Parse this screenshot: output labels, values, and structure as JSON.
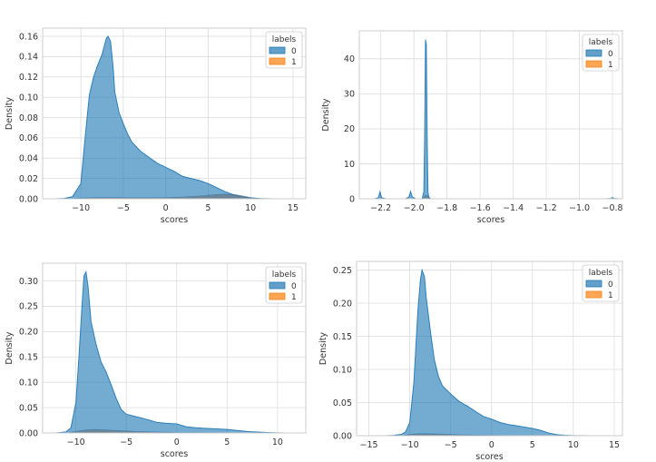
{
  "colors": {
    "label_0": "#1f77b4",
    "label_1": "#ff7f0e",
    "grid": "#dcdcdc",
    "axes": "#cccccc",
    "overlap": "#666666"
  },
  "chart_data": [
    {
      "type": "area",
      "subtype": "kde",
      "xlabel": "scores",
      "ylabel": "Density",
      "xlim": [
        -14.5,
        16.5
      ],
      "ylim": [
        0,
        0.168
      ],
      "xticks": [
        -10,
        -5,
        0,
        5,
        10,
        15
      ],
      "xtick_labels": [
        "−10",
        "−5",
        "0",
        "5",
        "10",
        "15"
      ],
      "yticks": [
        0,
        0.02,
        0.04,
        0.06,
        0.08,
        0.1,
        0.12,
        0.14,
        0.16
      ],
      "ytick_labels": [
        "0.00",
        "0.02",
        "0.04",
        "0.06",
        "0.08",
        "0.10",
        "0.12",
        "0.14",
        "0.16"
      ],
      "grid": true,
      "legend": {
        "title": "labels",
        "placement": "top-right",
        "entries": [
          "0",
          "1"
        ]
      },
      "series": [
        {
          "name": "0",
          "x": [
            -13,
            -12,
            -11,
            -10,
            -9.5,
            -9,
            -8.5,
            -8,
            -7.5,
            -7,
            -6.8,
            -6.5,
            -6.2,
            -6,
            -5.5,
            -5,
            -4.5,
            -4,
            -3,
            -2,
            -1,
            0,
            1,
            2,
            3,
            4,
            5,
            6,
            7,
            8,
            9,
            10,
            11,
            12,
            13
          ],
          "y": [
            0,
            0.0003,
            0.002,
            0.015,
            0.06,
            0.102,
            0.12,
            0.132,
            0.142,
            0.158,
            0.16,
            0.155,
            0.13,
            0.105,
            0.085,
            0.074,
            0.064,
            0.056,
            0.047,
            0.041,
            0.035,
            0.031,
            0.027,
            0.022,
            0.02,
            0.018,
            0.015,
            0.011,
            0.007,
            0.004,
            0.002,
            0.0008,
            0.0003,
            0.0001,
            0
          ]
        },
        {
          "name": "1",
          "x": [
            -12,
            -10,
            -8,
            -6,
            -4,
            -2,
            0,
            2,
            4,
            6,
            7,
            8,
            9,
            10,
            11,
            12
          ],
          "y": [
            0,
            0.0008,
            0.0012,
            0.0012,
            0.001,
            0.001,
            0.0012,
            0.0018,
            0.0028,
            0.0042,
            0.0046,
            0.0043,
            0.003,
            0.0013,
            0.0004,
            0
          ]
        }
      ]
    },
    {
      "type": "area",
      "subtype": "kde",
      "xlabel": "scores",
      "ylabel": "Density",
      "xlim": [
        -2.33,
        -0.74
      ],
      "ylim": [
        0,
        48
      ],
      "xticks": [
        -2.2,
        -2.0,
        -1.8,
        -1.6,
        -1.4,
        -1.2,
        -1.0,
        -0.8
      ],
      "xtick_labels": [
        "−2.2",
        "−2.0",
        "−1.8",
        "−1.6",
        "−1.4",
        "−1.2",
        "−1.0",
        "−0.8"
      ],
      "yticks": [
        0,
        10,
        20,
        30,
        40
      ],
      "ytick_labels": [
        "0",
        "10",
        "20",
        "30",
        "40"
      ],
      "grid": true,
      "legend": {
        "title": "labels",
        "placement": "top-right",
        "entries": [
          "0",
          "1"
        ]
      },
      "series": [
        {
          "name": "0",
          "x": [
            -2.24,
            -2.215,
            -2.205,
            -2.195,
            -2.17,
            -2.05,
            -2.03,
            -2.02,
            -2.01,
            -1.99,
            -1.95,
            -1.94,
            -1.935,
            -1.93,
            -1.925,
            -1.92,
            -1.915,
            -1.91,
            -1.905,
            -1.89,
            -0.84,
            -0.81,
            -0.8,
            -0.79,
            -0.76
          ],
          "y": [
            0,
            0.3,
            2.0,
            0.3,
            0,
            0,
            0.5,
            2.1,
            0.5,
            0,
            0,
            2,
            18,
            45.5,
            44,
            18,
            2,
            0.6,
            0.1,
            0,
            0,
            0.1,
            0.3,
            0.1,
            0
          ]
        },
        {
          "name": "1",
          "x": [
            -1.96,
            -1.94,
            -1.93,
            -1.92,
            -1.91,
            -1.89
          ],
          "y": [
            0,
            0.3,
            1.0,
            0.9,
            0.3,
            0
          ]
        }
      ]
    },
    {
      "type": "area",
      "subtype": "kde",
      "xlabel": "scores",
      "ylabel": "Density",
      "xlim": [
        -13.3,
        12.8
      ],
      "ylim": [
        0,
        0.335
      ],
      "xticks": [
        -10,
        -5,
        0,
        5,
        10
      ],
      "xtick_labels": [
        "−10",
        "−5",
        "0",
        "5",
        "10"
      ],
      "yticks": [
        0,
        0.05,
        0.1,
        0.15,
        0.2,
        0.25,
        0.3
      ],
      "ytick_labels": [
        "0.00",
        "0.05",
        "0.10",
        "0.15",
        "0.20",
        "0.25",
        "0.30"
      ],
      "grid": true,
      "legend": {
        "title": "labels",
        "placement": "top-right",
        "entries": [
          "0",
          "1"
        ]
      },
      "series": [
        {
          "name": "0",
          "x": [
            -12,
            -11,
            -10.5,
            -10,
            -9.7,
            -9.4,
            -9.2,
            -9,
            -8.8,
            -8.5,
            -8,
            -7.5,
            -7,
            -6.5,
            -6,
            -5.5,
            -5,
            -4,
            -3,
            -2,
            -1,
            0,
            1,
            2,
            3,
            4,
            5,
            6,
            7,
            8,
            9,
            10,
            11
          ],
          "y": [
            0,
            0.002,
            0.01,
            0.06,
            0.15,
            0.25,
            0.31,
            0.318,
            0.29,
            0.22,
            0.175,
            0.14,
            0.12,
            0.095,
            0.068,
            0.046,
            0.037,
            0.032,
            0.027,
            0.021,
            0.019,
            0.018,
            0.012,
            0.01,
            0.009,
            0.008,
            0.007,
            0.005,
            0.003,
            0.0018,
            0.001,
            0.0003,
            0
          ]
        },
        {
          "name": "1",
          "x": [
            -11,
            -10,
            -9,
            -8,
            -7,
            -6,
            -5,
            -4,
            -2,
            0,
            2,
            4,
            6,
            8
          ],
          "y": [
            0,
            0.003,
            0.006,
            0.007,
            0.006,
            0.005,
            0.004,
            0.003,
            0.002,
            0.001,
            0.0008,
            0.0005,
            0.0003,
            0
          ]
        }
      ]
    },
    {
      "type": "area",
      "subtype": "kde",
      "xlabel": "scores",
      "ylabel": "Density",
      "xlim": [
        -16.5,
        16.0
      ],
      "ylim": [
        0,
        0.263
      ],
      "xticks": [
        -15,
        -10,
        -5,
        0,
        5,
        10,
        15
      ],
      "xtick_labels": [
        "−15",
        "−10",
        "−5",
        "0",
        "5",
        "10",
        "15"
      ],
      "yticks": [
        0,
        0.05,
        0.1,
        0.15,
        0.2,
        0.25
      ],
      "ytick_labels": [
        "0.00",
        "0.05",
        "0.10",
        "0.15",
        "0.20",
        "0.25"
      ],
      "grid": true,
      "legend": {
        "title": "labels",
        "placement": "top-right",
        "entries": [
          "0",
          "1"
        ]
      },
      "series": [
        {
          "name": "0",
          "x": [
            -13,
            -12,
            -11,
            -10.5,
            -10,
            -9.5,
            -9,
            -8.7,
            -8.5,
            -8.2,
            -8,
            -7.5,
            -7,
            -6.5,
            -6,
            -5,
            -4,
            -3,
            -2,
            -1,
            0,
            1,
            2,
            3,
            4,
            5,
            6,
            7,
            8,
            9,
            10,
            11,
            12
          ],
          "y": [
            0,
            0.0005,
            0.002,
            0.006,
            0.02,
            0.08,
            0.19,
            0.235,
            0.25,
            0.24,
            0.21,
            0.16,
            0.115,
            0.09,
            0.075,
            0.063,
            0.052,
            0.045,
            0.037,
            0.029,
            0.025,
            0.02,
            0.017,
            0.015,
            0.013,
            0.011,
            0.008,
            0.004,
            0.0015,
            0.0006,
            0.0002,
            0.0001,
            0
          ]
        },
        {
          "name": "1",
          "x": [
            -11,
            -10,
            -9,
            -8,
            -7,
            -6,
            -5,
            -4,
            -2,
            0,
            2,
            4,
            6
          ],
          "y": [
            0,
            0.002,
            0.003,
            0.003,
            0.0028,
            0.0025,
            0.002,
            0.0015,
            0.001,
            0.0008,
            0.0005,
            0.0003,
            0
          ]
        }
      ]
    }
  ]
}
